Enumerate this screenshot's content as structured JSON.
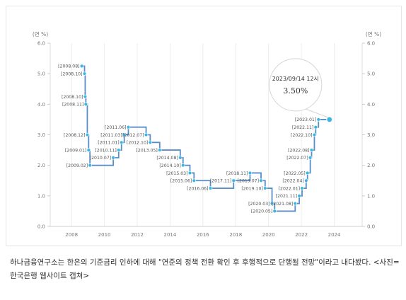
{
  "chart_data": {
    "type": "line",
    "line_style": "step",
    "ylabel_left": "(연 %)",
    "ylabel_right": "(연 %)",
    "xlim": [
      2006.7,
      2025.7
    ],
    "ylim": [
      0,
      6
    ],
    "x_ticks": [
      {
        "value": 2008,
        "label": "2008"
      },
      {
        "value": 2010,
        "label": "2010"
      },
      {
        "value": 2012,
        "label": "2012"
      },
      {
        "value": 2014,
        "label": "2014"
      },
      {
        "value": 2016,
        "label": "2016"
      },
      {
        "value": 2018,
        "label": "2018"
      },
      {
        "value": 2020,
        "label": "2020"
      },
      {
        "value": 2022,
        "label": "2022"
      },
      {
        "value": 2024,
        "label": "2024"
      }
    ],
    "y_ticks": [
      {
        "value": 0,
        "label": "0.0"
      },
      {
        "value": 1,
        "label": "1.0"
      },
      {
        "value": 2,
        "label": "2.0"
      },
      {
        "value": 3,
        "label": "3.0"
      },
      {
        "value": 4,
        "label": "4.0"
      },
      {
        "value": 5,
        "label": "5.0"
      },
      {
        "value": 6,
        "label": "6.0"
      }
    ],
    "grid": "vertical",
    "line_color": "#5b8ec7",
    "point_color": "#3ab6e3",
    "points": [
      {
        "date": "2008.08",
        "x": 2008.62,
        "y": 5.25,
        "label": "[2008.08]",
        "side": "left"
      },
      {
        "date": "2008.10",
        "x": 2008.79,
        "y": 5.0,
        "label": "[2008.10]",
        "side": "left"
      },
      {
        "date": "2008.10",
        "x": 2008.83,
        "y": 4.25,
        "label": "[2008.10]",
        "side": "left"
      },
      {
        "date": "2008.11",
        "x": 2008.87,
        "y": 4.0,
        "label": "[2008.11]",
        "side": "left"
      },
      {
        "date": "2008.12",
        "x": 2008.96,
        "y": 3.0,
        "label": "[2008.12]",
        "side": "left"
      },
      {
        "date": "2009.01",
        "x": 2009.04,
        "y": 2.5,
        "label": "[2009.01]",
        "side": "left"
      },
      {
        "date": "2009.02",
        "x": 2009.12,
        "y": 2.0,
        "label": "[2009.02]",
        "side": "left"
      },
      {
        "date": "2010.07",
        "x": 2010.54,
        "y": 2.25,
        "label": "[2010.07]",
        "side": "left"
      },
      {
        "date": "2010.11",
        "x": 2010.87,
        "y": 2.5,
        "label": "[2010.11]",
        "side": "left"
      },
      {
        "date": "2011.01",
        "x": 2011.04,
        "y": 2.75,
        "label": "[2011.01]",
        "side": "left"
      },
      {
        "date": "2011.03",
        "x": 2011.21,
        "y": 3.0,
        "label": "[2011.03]",
        "side": "left"
      },
      {
        "date": "2011.06",
        "x": 2011.46,
        "y": 3.25,
        "label": "[2011.06]",
        "side": "left"
      },
      {
        "date": "2012.07",
        "x": 2012.54,
        "y": 3.0,
        "label": "[2012.07]",
        "side": "left"
      },
      {
        "date": "2012.10",
        "x": 2012.79,
        "y": 2.75,
        "label": "[2012.10]",
        "side": "left"
      },
      {
        "date": "2013.05",
        "x": 2013.37,
        "y": 2.5,
        "label": "[2013.05]",
        "side": "left"
      },
      {
        "date": "2014.08",
        "x": 2014.62,
        "y": 2.25,
        "label": "[2014.08]",
        "side": "left"
      },
      {
        "date": "2014.10",
        "x": 2014.79,
        "y": 2.0,
        "label": "[2014.10]",
        "side": "left"
      },
      {
        "date": "2015.03",
        "x": 2015.21,
        "y": 1.75,
        "label": "[2015.03]",
        "side": "left"
      },
      {
        "date": "2015.06",
        "x": 2015.46,
        "y": 1.5,
        "label": "[2015.06]",
        "side": "left"
      },
      {
        "date": "2016.06",
        "x": 2016.46,
        "y": 1.25,
        "label": "[2016.06]",
        "side": "left"
      },
      {
        "date": "2017.11",
        "x": 2017.87,
        "y": 1.5,
        "label": "[2017.11]",
        "side": "left"
      },
      {
        "date": "2018.11",
        "x": 2018.87,
        "y": 1.75,
        "label": "[2018.11]",
        "side": "left"
      },
      {
        "date": "2019.07",
        "x": 2019.54,
        "y": 1.5,
        "label": "[2019.07]",
        "side": "left"
      },
      {
        "date": "2019.10",
        "x": 2019.79,
        "y": 1.25,
        "label": "[2019.10]",
        "side": "left"
      },
      {
        "date": "2020.03",
        "x": 2020.21,
        "y": 0.75,
        "label": "[2020.03]",
        "side": "left"
      },
      {
        "date": "2020.05",
        "x": 2020.37,
        "y": 0.5,
        "label": "[2020.05]",
        "side": "left"
      },
      {
        "date": "2021.08",
        "x": 2021.62,
        "y": 0.75,
        "label": "[2021.08]",
        "side": "left"
      },
      {
        "date": "2021.11",
        "x": 2021.87,
        "y": 1.0,
        "label": "[2021.11]",
        "side": "left"
      },
      {
        "date": "2022.01",
        "x": 2022.04,
        "y": 1.25,
        "label": "[2022.01]",
        "side": "left"
      },
      {
        "date": "2022.04",
        "x": 2022.29,
        "y": 1.5,
        "label": "[2022.04]",
        "side": "left"
      },
      {
        "date": "2022.05",
        "x": 2022.37,
        "y": 1.75,
        "label": "[2022.05]",
        "side": "left"
      },
      {
        "date": "2022.07",
        "x": 2022.54,
        "y": 2.25,
        "label": "[2022.07]",
        "side": "left"
      },
      {
        "date": "2022.08",
        "x": 2022.62,
        "y": 2.5,
        "label": "[2022.08]",
        "side": "left"
      },
      {
        "date": "2022.10",
        "x": 2022.79,
        "y": 3.0,
        "label": "[2022.10]",
        "side": "left"
      },
      {
        "date": "2022.11",
        "x": 2022.87,
        "y": 3.25,
        "label": "[2022.11]",
        "side": "left"
      },
      {
        "date": "2023.01",
        "x": 2023.04,
        "y": 3.5,
        "label": "[2023.01]",
        "side": "left"
      },
      {
        "date": "2023.09",
        "x": 2023.71,
        "y": 3.5,
        "label": "",
        "side": "left"
      }
    ],
    "tooltip": {
      "title": "2023/09/14 12시",
      "value": "3.50%",
      "x": 2023.71,
      "y": 3.5
    }
  },
  "caption": "하나금융연구소는 한은의 기준금리 인하에 대해 \"연준의 정책 전환 확인 후 후행적으로 단행될 전망\"이라고 내다봤다. <사진=한국은행 웹사이트 캡쳐>"
}
